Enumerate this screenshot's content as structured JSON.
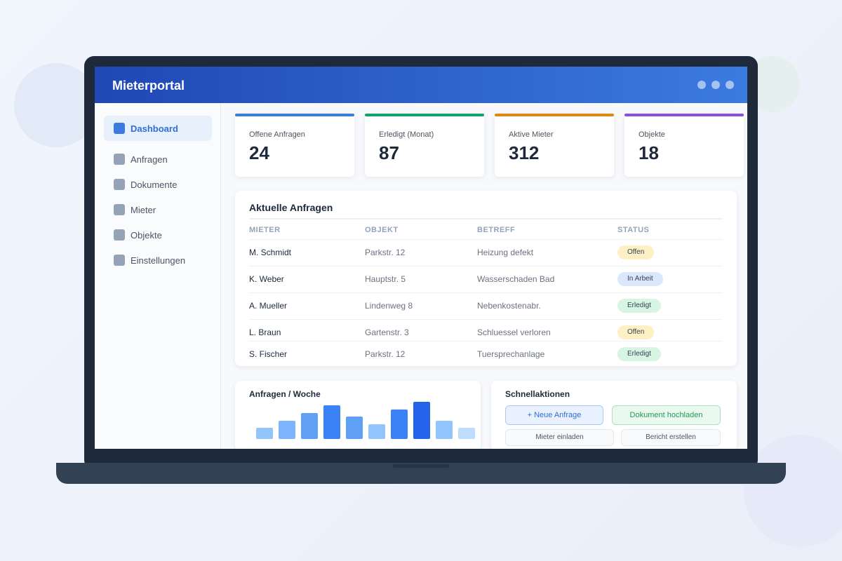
{
  "header": {
    "title": "Mieterportal"
  },
  "sidebar": {
    "items": [
      "Dashboard",
      "Anfragen",
      "Dokumente",
      "Mieter",
      "Objekte",
      "Einstellungen"
    ],
    "active": 0
  },
  "stats": [
    {
      "label": "Offene Anfragen",
      "value": 24,
      "color": "#3b7dd8"
    },
    {
      "label": "Erledigt (Monat)",
      "value": 87,
      "color": "#16a06a"
    },
    {
      "label": "Aktive Mieter",
      "value": 312,
      "color": "#dd8a12"
    },
    {
      "label": "Objekte",
      "value": 18,
      "color": "#8b4fd6"
    }
  ],
  "requests": {
    "title": "Aktuelle Anfragen",
    "columns": [
      "MIETER",
      "OBJEKT",
      "BETREFF",
      "STATUS"
    ],
    "rows": [
      {
        "tenant": "M. Schmidt",
        "property": "Parkstr. 12",
        "subject": "Heizung defekt",
        "status": "Offen",
        "status_color": "#fdf0c4"
      },
      {
        "tenant": "K. Weber",
        "property": "Hauptstr. 5",
        "subject": "Wasserschaden Bad",
        "status": "In Arbeit",
        "status_color": "#dbe8fc"
      },
      {
        "tenant": "A. Mueller",
        "property": "Lindenweg 8",
        "subject": "Nebenkostenabr.",
        "status": "Erledigt",
        "status_color": "#d6f5e2"
      },
      {
        "tenant": "L. Braun",
        "property": "Gartenstr. 3",
        "subject": "Schluessel verloren",
        "status": "Offen",
        "status_color": "#fdf0c4"
      },
      {
        "tenant": "S. Fischer",
        "property": "Parkstr. 12",
        "subject": "Tuersprechanlage",
        "status": "Erledigt",
        "status_color": "#d6f5e2"
      }
    ]
  },
  "weekly_chart": {
    "type": "bar",
    "title": "Anfragen / Woche",
    "values": [
      3,
      5,
      7,
      9,
      6,
      4,
      8,
      10,
      5,
      3
    ],
    "colors": [
      "#93c5fd",
      "#7cb5fb",
      "#5fa0f5",
      "#3b82f6",
      "#5fa0f5",
      "#93c5fd",
      "#3b82f6",
      "#2563eb",
      "#93c5fd",
      "#bfdbfe"
    ]
  },
  "quick_actions": {
    "title": "Schnellaktionen",
    "buttons": [
      {
        "label": "+ Neue Anfrage",
        "color": "#2f6fd6",
        "background": "#e8f1fd",
        "border": "#a9c8f3"
      },
      {
        "label": "Dokument hochladen",
        "color": "#1f9a55",
        "background": "#e9f9ef",
        "border": "#a8e2bd"
      },
      {
        "label": "Mieter einladen",
        "color": "#4b5563",
        "background": "#f8fafc",
        "border": "#e2e8f0"
      },
      {
        "label": "Bericht erstellen",
        "color": "#4b5563",
        "background": "#f8fafc",
        "border": "#e2e8f0"
      }
    ]
  }
}
